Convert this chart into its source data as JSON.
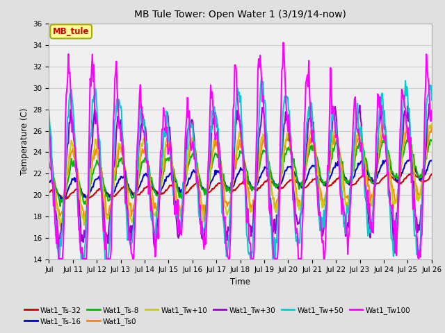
{
  "title": "MB Tule Tower: Open Water 1 (3/19/14-now)",
  "xlabel": "Time",
  "ylabel": "Temperature (C)",
  "ylim": [
    14,
    36
  ],
  "yticks": [
    14,
    16,
    18,
    20,
    22,
    24,
    26,
    28,
    30,
    32,
    34,
    36
  ],
  "x_labels": [
    "Jul",
    "Jul 11",
    "Jul 12",
    "Jul 13",
    "Jul 14",
    "Jul 15",
    "Jul 16",
    "Jul 17",
    "Jul 18",
    "Jul 19",
    "Jul 20",
    "Jul 21",
    "Jul 22",
    "Jul 23",
    "Jul 24",
    "Jul 25",
    "Jul 26"
  ],
  "bg_color": "#e0e0e0",
  "plot_bg_color": "#f0f0f0",
  "legend_box_color": "#ffff99",
  "legend_box_edge": "#aaaa00",
  "annotation_text": "MB_tule",
  "annotation_color": "#cc0000",
  "series_order": [
    "Wat1_Ts-32",
    "Wat1_Ts-16",
    "Wat1_Ts-8",
    "Wat1_Ts0",
    "Wat1_Tw+10",
    "Wat1_Tw+30",
    "Wat1_Tw+50",
    "Wat1_Tw100"
  ],
  "series": {
    "Wat1_Ts-32": {
      "color": "#cc0000",
      "lw": 1.5
    },
    "Wat1_Ts-16": {
      "color": "#0000cc",
      "lw": 1.5
    },
    "Wat1_Ts-8": {
      "color": "#00bb00",
      "lw": 1.5
    },
    "Wat1_Ts0": {
      "color": "#ff8800",
      "lw": 1.5
    },
    "Wat1_Tw+10": {
      "color": "#cccc00",
      "lw": 1.5
    },
    "Wat1_Tw+30": {
      "color": "#9900cc",
      "lw": 1.5
    },
    "Wat1_Tw+50": {
      "color": "#00cccc",
      "lw": 1.5
    },
    "Wat1_Tw100": {
      "color": "#ff00ff",
      "lw": 1.5
    }
  }
}
